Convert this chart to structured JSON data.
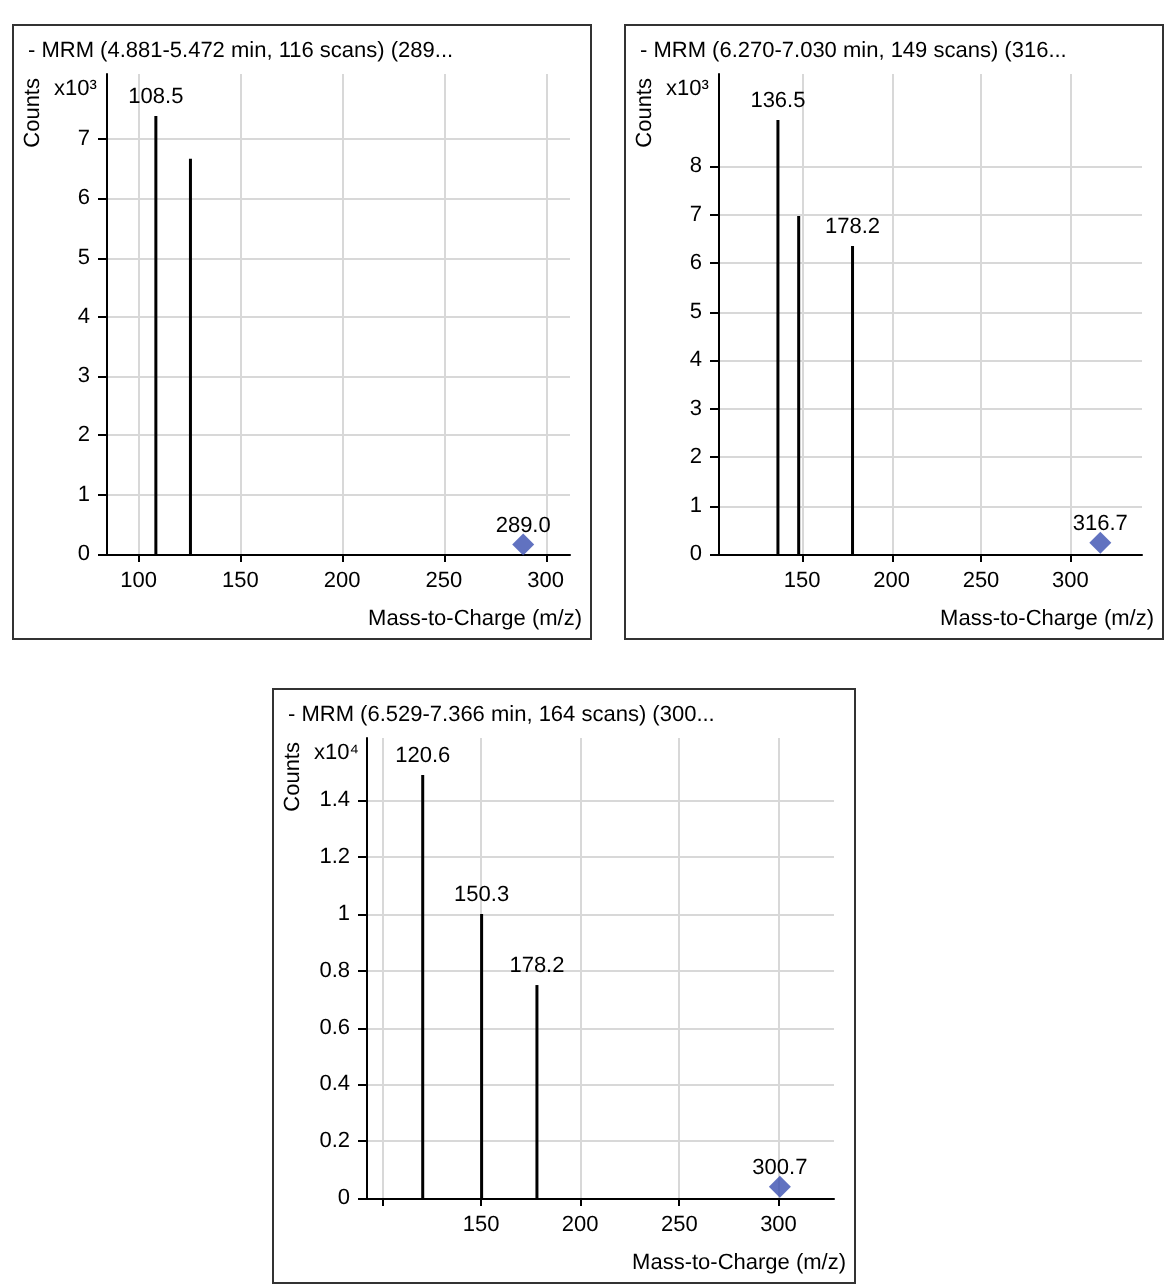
{
  "chart_data": [
    {
      "type": "bar",
      "title": "- MRM (4.881-5.472 min, 116 scans) (289...",
      "xlabel": "Mass-to-Charge (m/z)",
      "ylabel": "Counts",
      "grid": true,
      "xlim": [
        84,
        312
      ],
      "xticks": [
        100,
        150,
        200,
        250,
        300
      ],
      "ylim": [
        0,
        8.1
      ],
      "yticks": [
        0,
        1,
        2,
        3,
        4,
        5,
        6,
        7
      ],
      "series": [
        {
          "color": "#000000",
          "x": [
            108.5,
            125.5
          ],
          "values": [
            7.39,
            6.67
          ]
        },
        {
          "type": "scatter",
          "color": "#3a4fb0",
          "marker": "diamond",
          "x": [
            289.0
          ],
          "values": [
            0.16
          ]
        }
      ],
      "annotations": [
        "x10³",
        {
          "text": "108.5",
          "x": 108.5,
          "y": 7.39
        },
        {
          "text": "289.0",
          "x": 289.0,
          "y": 0.16
        }
      ]
    },
    {
      "type": "bar",
      "title": "- MRM (6.270-7.030 min, 149 scans) (316...",
      "xlabel": "Mass-to-Charge (m/z)",
      "ylabel": "Counts",
      "grid": true,
      "xlim": [
        103,
        340
      ],
      "xticks": [
        150,
        200,
        250,
        300
      ],
      "ylim": [
        0,
        9.9
      ],
      "yticks": [
        0,
        1,
        2,
        3,
        4,
        5,
        6,
        7,
        8
      ],
      "series": [
        {
          "color": "#000000",
          "x": [
            136.5,
            148.1,
            178.2
          ],
          "values": [
            8.95,
            6.97,
            6.35
          ]
        },
        {
          "type": "scatter",
          "color": "#3a4fb0",
          "marker": "diamond",
          "x": [
            316.7
          ],
          "values": [
            0.23
          ]
        }
      ],
      "annotations": [
        "x10³",
        {
          "text": "136.5",
          "x": 136.5,
          "y": 8.95
        },
        {
          "text": "178.2",
          "x": 178.2,
          "y": 6.35
        },
        {
          "text": "316.7",
          "x": 316.7,
          "y": 0.23
        }
      ]
    },
    {
      "type": "bar",
      "title": "- MRM (6.529-7.366 min, 164 scans) (300...",
      "xlabel": "Mass-to-Charge (m/z)",
      "ylabel": "Counts",
      "grid": true,
      "xlim": [
        92,
        328
      ],
      "xticks": [
        {
          "value": 100,
          "label": null
        },
        150,
        200,
        250,
        300
      ],
      "ylim": [
        0,
        1.62
      ],
      "yticks": [
        0,
        0.2,
        0.4,
        0.6,
        0.8,
        1,
        1.2,
        1.4
      ],
      "series": [
        {
          "color": "#000000",
          "x": [
            120.6,
            150.3,
            178.2
          ],
          "values": [
            1.49,
            1.0,
            0.75
          ]
        },
        {
          "type": "scatter",
          "color": "#3a4fb0",
          "marker": "diamond",
          "x": [
            300.7
          ],
          "values": [
            0.04
          ]
        }
      ],
      "annotations": [
        "x10⁴",
        {
          "text": "120.6",
          "x": 120.6,
          "y": 1.49
        },
        {
          "text": "150.3",
          "x": 150.3,
          "y": 1.0
        },
        {
          "text": "178.2",
          "x": 178.2,
          "y": 0.75
        },
        {
          "text": "300.7",
          "x": 300.7,
          "y": 0.04
        }
      ]
    }
  ]
}
